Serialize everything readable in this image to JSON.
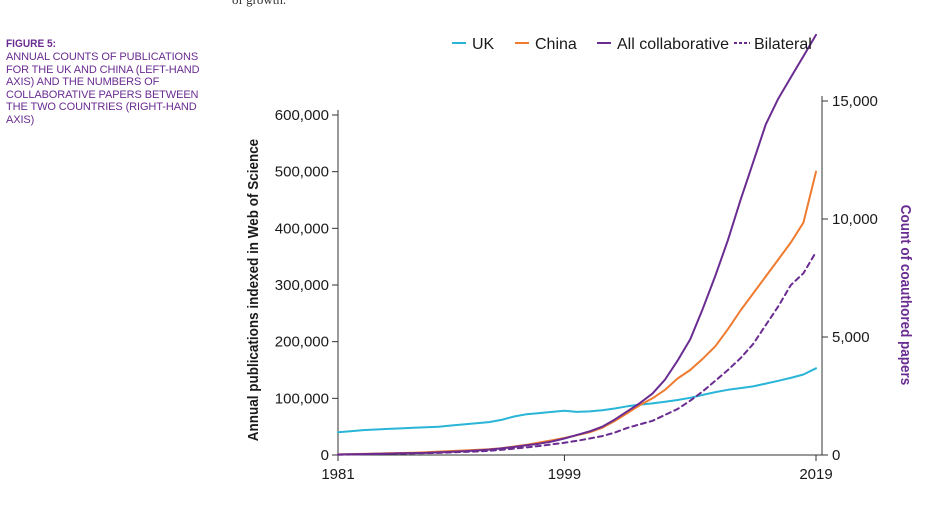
{
  "page": {
    "top_snippet": "of growth."
  },
  "caption": {
    "heading": "FIGURE 5:",
    "body": "ANNUAL COUNTS OF PUBLICATIONS FOR THE UK AND CHINA (LEFT-HAND AXIS) AND THE NUMBERS OF COLLABORATIVE PAPERS BETWEEN THE TWO COUNTRIES (RIGHT-HAND AXIS)"
  },
  "colors": {
    "uk": "#29b5d8",
    "china": "#ee7b30",
    "all_collaborative": "#6a2c91",
    "bilateral": "#6a2c91",
    "axis": "#333333"
  },
  "chart_data": {
    "type": "line",
    "title": "",
    "xlabel": "",
    "ylabel": "Annual publications indexed in Web of Science",
    "y2label": "Count of coauthored papers",
    "xlim": [
      1981,
      2019
    ],
    "ylim": [
      0,
      660000
    ],
    "y2lim": [
      0,
      16500
    ],
    "x_ticks": [
      "1981",
      "1999",
      "2019"
    ],
    "y_ticks": [
      "0",
      "100,000",
      "200,000",
      "300,000",
      "400,000",
      "500,000",
      "600,000"
    ],
    "y2_ticks": [
      "0",
      "5,000",
      "10,000",
      "15,000"
    ],
    "legend": {
      "placement": "top",
      "entries": [
        "UK",
        "China",
        "All collaborative",
        "Bilateral"
      ]
    },
    "x": [
      1981,
      1982,
      1983,
      1984,
      1985,
      1986,
      1987,
      1988,
      1989,
      1990,
      1991,
      1992,
      1993,
      1994,
      1995,
      1996,
      1997,
      1998,
      1999,
      2000,
      2001,
      2002,
      2003,
      2004,
      2005,
      2006,
      2007,
      2008,
      2009,
      2010,
      2011,
      2012,
      2013,
      2014,
      2015,
      2016,
      2017,
      2018,
      2019
    ],
    "series": [
      {
        "name": "UK",
        "axis": "left",
        "style": "solid",
        "values": [
          40000,
          42000,
          44000,
          45000,
          46000,
          47000,
          48000,
          49000,
          50000,
          52000,
          54000,
          56000,
          58000,
          62000,
          68000,
          72000,
          74000,
          76000,
          78000,
          76000,
          77000,
          79000,
          82000,
          86000,
          89000,
          91000,
          94000,
          97000,
          101000,
          106000,
          111000,
          115000,
          118000,
          121000,
          126000,
          131000,
          136000,
          142000,
          153000
        ]
      },
      {
        "name": "China",
        "axis": "left",
        "style": "solid",
        "values": [
          1000,
          1500,
          2000,
          2500,
          3000,
          3500,
          4000,
          5000,
          6000,
          7000,
          8000,
          9000,
          10000,
          12000,
          15000,
          18000,
          22000,
          26000,
          30000,
          35000,
          40000,
          48000,
          60000,
          74000,
          88000,
          100000,
          115000,
          135000,
          150000,
          170000,
          192000,
          222000,
          255000,
          285000,
          315000,
          345000,
          375000,
          410000,
          500000
        ]
      },
      {
        "name": "All collaborative",
        "axis": "right",
        "style": "solid",
        "values": [
          20,
          30,
          40,
          50,
          60,
          70,
          80,
          90,
          110,
          130,
          160,
          190,
          230,
          280,
          340,
          410,
          480,
          570,
          700,
          850,
          1000,
          1200,
          1500,
          1850,
          2200,
          2600,
          3200,
          4000,
          4900,
          6200,
          7600,
          9100,
          10800,
          12400,
          14000,
          15100,
          16000,
          16900,
          17800
        ]
      },
      {
        "name": "Bilateral",
        "axis": "right",
        "style": "dashed",
        "values": [
          10,
          20,
          30,
          40,
          50,
          60,
          70,
          80,
          90,
          110,
          130,
          150,
          180,
          220,
          270,
          320,
          380,
          450,
          520,
          600,
          700,
          800,
          950,
          1150,
          1300,
          1450,
          1700,
          1950,
          2300,
          2700,
          3150,
          3600,
          4100,
          4700,
          5500,
          6300,
          7200,
          7700,
          8600
        ]
      }
    ]
  }
}
